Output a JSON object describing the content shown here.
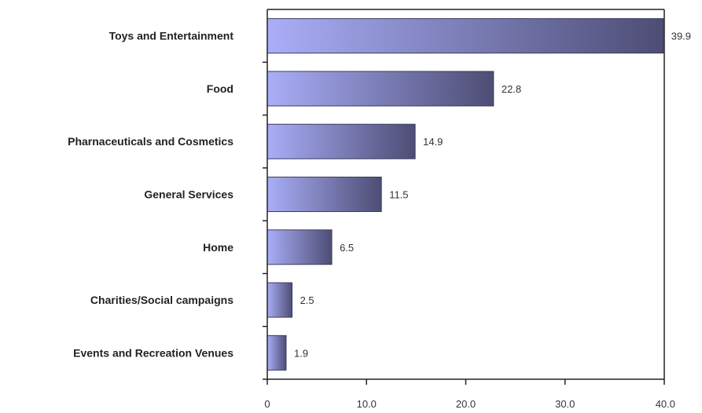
{
  "chart_data": {
    "type": "bar",
    "orientation": "horizontal",
    "categories": [
      "Toys and Entertainment",
      "Food",
      "Pharnaceuticals and Cosmetics",
      "General Services",
      "Home",
      "Charities/Social campaigns",
      "Events and Recreation Venues"
    ],
    "values": [
      39.9,
      22.8,
      14.9,
      11.5,
      6.5,
      2.5,
      1.9
    ],
    "value_labels": [
      "39.9",
      "22.8",
      "14.9",
      "11.5",
      "6.5",
      "2.5",
      "1.9"
    ],
    "xlim": [
      0,
      40
    ],
    "xticks": [
      0,
      10,
      20,
      30,
      40
    ],
    "xtick_labels": [
      "0",
      "10.0",
      "20.0",
      "30.0",
      "40.0"
    ],
    "title": "",
    "xlabel": "",
    "ylabel": "",
    "grid": false,
    "bar_color_light": "#a9aef7",
    "bar_color_dark": "#4d4d75"
  }
}
